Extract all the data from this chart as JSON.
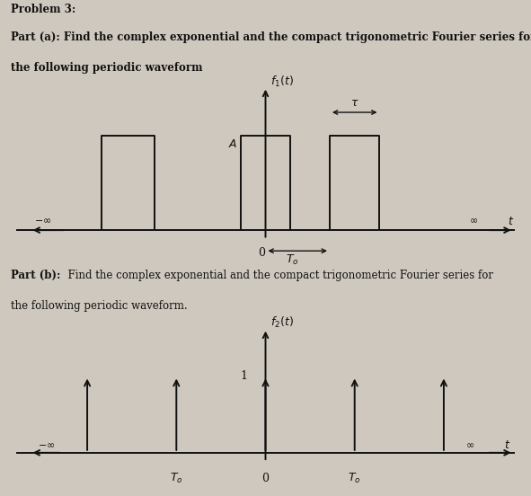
{
  "bg_color": "#cfc8be",
  "text_color": "#111111",
  "fig_width": 5.91,
  "fig_height": 5.52,
  "problem_text": "Problem 3:",
  "part_a_line1": "Part (a): Find the complex exponential and the compact trigonometric Fourier series for",
  "part_a_line2": "the following periodic waveform",
  "part_b_bold": "Part (b):",
  "part_b_rest": "  Find the complex exponential and the compact trigonometric Fourier series for",
  "part_b_line2": "the following periodic waveform.",
  "f1_label": "$f_1(t)$",
  "f2_label": "$f_2(t)$",
  "t_label": "$t$",
  "A_label": "$A$",
  "T0_label": "$T_o$",
  "tau_label": "$\\tau$",
  "zero_label": "0",
  "one_label": "1",
  "neg_inf": "$-\\infty$",
  "pos_inf": "$\\infty$",
  "font_size_text": 8.5,
  "font_size_labels": 9,
  "lw": 1.4
}
